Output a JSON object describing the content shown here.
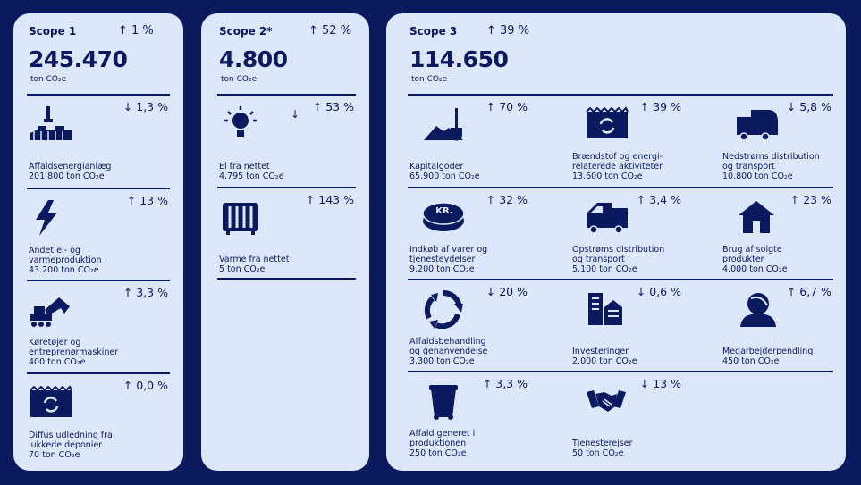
{
  "scopes": [
    {
      "title": "Scope 1",
      "change": "↑ 1 %",
      "total": "245.470",
      "unit": "ton CO₂e",
      "items": [
        {
          "label": "Affaldsenergianlæg",
          "value": "201.800 ton CO₂e",
          "change": "↓ 1,3 %"
        },
        {
          "label": "Andet el- og\nvarmeproduktion",
          "value": "43.200 ton CO₂e",
          "change": "↑ 13 %"
        },
        {
          "label": "Køretøjer og\nentreprenørmaskiner",
          "value": "400 ton CO₂e",
          "change": "↑ 3,3 %"
        },
        {
          "label": "Diffus udledning fra\nlukkede deponier",
          "value": "70 ton CO₂e",
          "change": "↑ 0,0 %"
        }
      ]
    },
    {
      "title": "Scope 2*",
      "change": "↑ 52 %",
      "total": "4.800",
      "unit": "ton CO₂e",
      "items": [
        {
          "label": "El fra nettet",
          "value": "4.795 ton CO₂e",
          "change": "↑ 53 %",
          "note": "↓"
        },
        {
          "label": "Varme fra nettet",
          "value": "5 ton CO₂e",
          "change": "↑ 143 %"
        }
      ]
    },
    {
      "title": "Scope 3",
      "change": "↑ 39 %",
      "total": "114.650",
      "unit": "ton CO₂e",
      "items": [
        {
          "label": "Kapitalgoder",
          "value": "65.900 ton CO₂e",
          "change": "↑ 70 %"
        },
        {
          "label": "Brændstof og energi-\nrelaterede aktiviteter",
          "value": "13.600 ton CO₂e",
          "change": "↑ 39 %"
        },
        {
          "label": "Nedstrøms distribution\nog transport",
          "value": "10.800 ton CO₂e",
          "change": "↓ 5,8 %"
        },
        {
          "label": "Indkøb af varer og\ntjenesteydelser",
          "value": "9.200 ton CO₂e",
          "change": "↑ 32 %",
          "icon_text": "KR."
        },
        {
          "label": "Opstrøms distribution\nog transport",
          "value": "5.100 ton CO₂e",
          "change": "↑ 3,4 %"
        },
        {
          "label": "Brug af solgte\nprodukter",
          "value": "4.000 ton CO₂e",
          "change": "↑ 23 %"
        },
        {
          "label": "Affaldsbehandling\nog genanvendelse",
          "value": "3.300 ton CO₂e",
          "change": "↓ 20 %"
        },
        {
          "label": "Investeringer",
          "value": "2.000 ton CO₂e",
          "change": "↓ 0,6 %"
        },
        {
          "label": "Medarbejderpendling",
          "value": "450 ton CO₂e",
          "change": "↑ 6,7 %"
        },
        {
          "label": "Affald generet i\nproduktionen",
          "value": "250 ton CO₂e",
          "change": "↑ 3,3 %"
        },
        {
          "label": "Tjenesterejser",
          "value": "50 ton CO₂e",
          "change": "↓ 13 %"
        }
      ]
    }
  ]
}
